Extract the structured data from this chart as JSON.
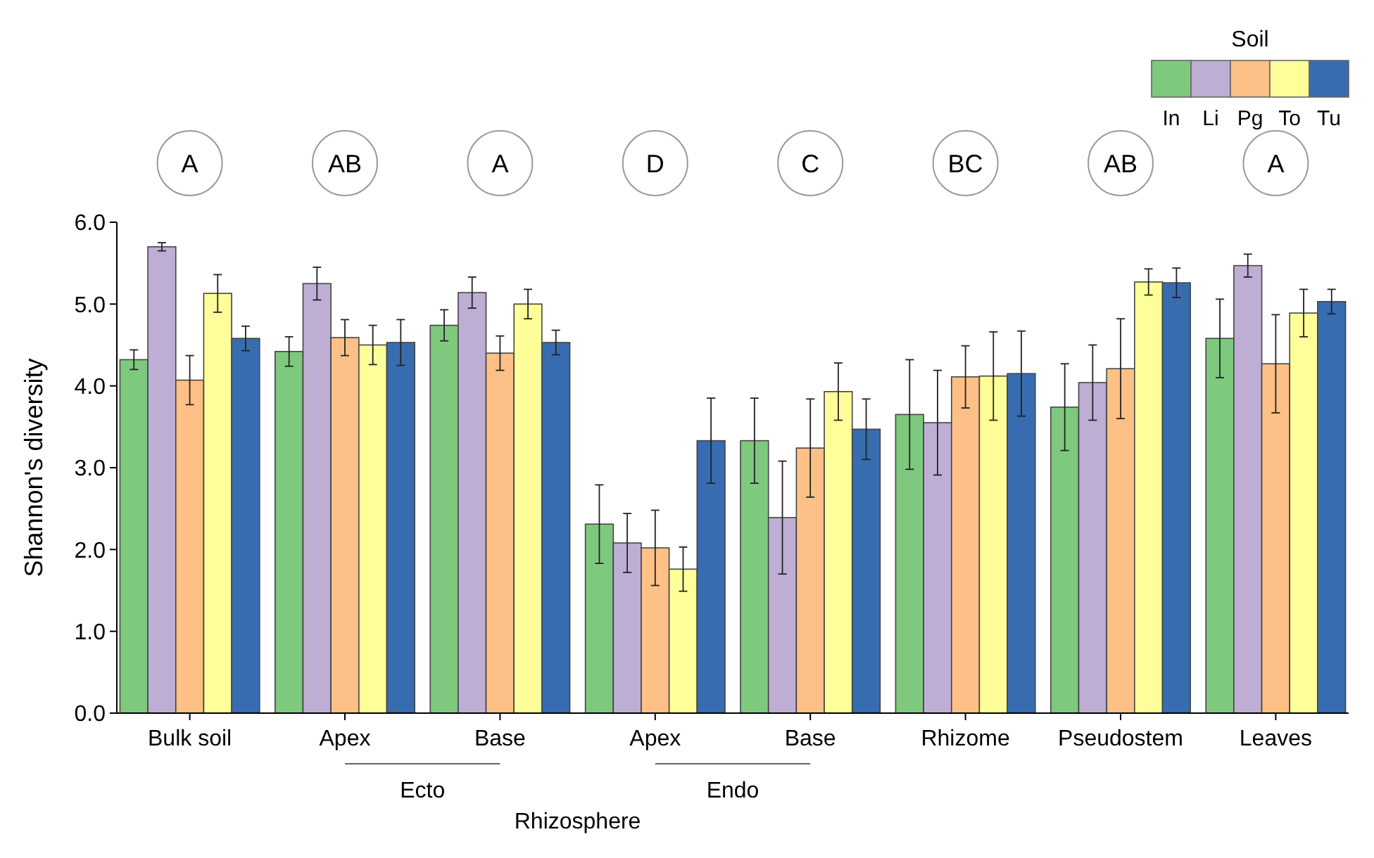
{
  "chart_data": {
    "type": "bar",
    "ylabel": "Shannon's diversity",
    "legend_title": "Soil",
    "legend": "top right",
    "grid": false,
    "categories": [
      "Bulk soil",
      "Apex",
      "Base",
      "Apex",
      "Base",
      "Rhizome",
      "Pseudostem",
      "Leaves"
    ],
    "ylim": [
      0,
      6
    ],
    "yticks": [
      {
        "value": 0,
        "label": "0.0"
      },
      {
        "value": 1,
        "label": "1.0"
      },
      {
        "value": 2,
        "label": "2.0"
      },
      {
        "value": 3,
        "label": "3.0"
      },
      {
        "value": 4,
        "label": "4.0"
      },
      {
        "value": 5,
        "label": "5.0"
      },
      {
        "value": 6,
        "label": "6.0"
      }
    ],
    "series": [
      {
        "name": "In",
        "color": "#7fc97f",
        "values": [
          4.32,
          4.42,
          4.74,
          2.31,
          3.33,
          3.65,
          3.74,
          4.58
        ],
        "errors": [
          0.12,
          0.18,
          0.19,
          0.48,
          0.52,
          0.67,
          0.53,
          0.48
        ]
      },
      {
        "name": "Li",
        "color": "#beaed4",
        "values": [
          5.7,
          5.25,
          5.14,
          2.08,
          2.39,
          3.55,
          4.04,
          5.47
        ],
        "errors": [
          0.05,
          0.2,
          0.19,
          0.36,
          0.69,
          0.64,
          0.46,
          0.14
        ]
      },
      {
        "name": "Pg",
        "color": "#fdc086",
        "values": [
          4.07,
          4.59,
          4.4,
          2.02,
          3.24,
          4.11,
          4.21,
          4.27
        ],
        "errors": [
          0.3,
          0.22,
          0.21,
          0.46,
          0.6,
          0.38,
          0.61,
          0.6
        ]
      },
      {
        "name": "To",
        "color": "#ffff99",
        "values": [
          5.13,
          4.5,
          5.0,
          1.76,
          3.93,
          4.12,
          5.27,
          4.89
        ],
        "errors": [
          0.23,
          0.24,
          0.18,
          0.27,
          0.35,
          0.54,
          0.16,
          0.29
        ]
      },
      {
        "name": "Tu",
        "color": "#386cb0",
        "values": [
          4.58,
          4.53,
          4.53,
          3.33,
          3.47,
          4.15,
          5.26,
          5.03
        ],
        "errors": [
          0.15,
          0.28,
          0.15,
          0.52,
          0.37,
          0.52,
          0.18,
          0.15
        ]
      }
    ],
    "annotations": [
      "A",
      "AB",
      "A",
      "D",
      "C",
      "BC",
      "AB",
      "A",
      "Ecto",
      "Endo",
      "Rhizosphere"
    ]
  }
}
